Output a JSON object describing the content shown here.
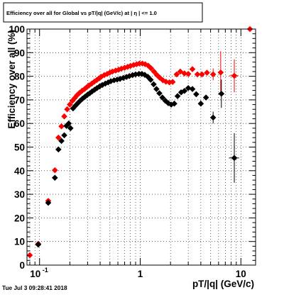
{
  "chart_data": {
    "type": "scatter",
    "title": "Efficiency over all for Global vs pT/|q| (GeV/c) at | η | <= 1.0",
    "xlabel": "pT/|q| (GeV/c)",
    "ylabel": "Efficiency over all (%)",
    "footer": "Tue Jul  3 09:28:41 2018",
    "x_scale": "log",
    "xlim": [
      0.075,
      14
    ],
    "ylim": [
      0,
      100
    ],
    "grid": true,
    "y_ticks": [
      "0",
      "10",
      "20",
      "30",
      "40",
      "50",
      "60",
      "70",
      "80",
      "90",
      "100"
    ],
    "x_ticks": [
      {
        "v": 0.1,
        "t": "10",
        "sup": "-1"
      },
      {
        "v": 1,
        "t": "1",
        "sup": ""
      },
      {
        "v": 10,
        "t": "10",
        "sup": ""
      }
    ],
    "series": [
      {
        "color": "#ff0000",
        "points": [
          [
            0.08,
            4.2,
            0,
            0
          ],
          [
            0.097,
            9.0,
            0.005,
            0
          ],
          [
            0.122,
            27.2,
            0.006,
            0
          ],
          [
            0.142,
            40.2,
            0.004,
            0
          ],
          [
            0.154,
            54.0,
            0,
            0
          ],
          [
            0.165,
            58.8,
            0,
            0
          ],
          [
            0.176,
            63.0,
            0,
            0
          ],
          [
            0.188,
            66.0,
            0,
            0
          ],
          [
            0.2,
            68.0,
            0,
            0
          ],
          [
            0.212,
            69.6,
            0,
            0
          ],
          [
            0.224,
            70.8,
            0,
            0
          ],
          [
            0.236,
            72.0,
            0,
            0
          ],
          [
            0.25,
            73.0,
            0,
            0
          ],
          [
            0.265,
            73.9,
            0,
            0
          ],
          [
            0.28,
            74.6,
            0,
            0
          ],
          [
            0.295,
            75.4,
            0,
            0
          ],
          [
            0.31,
            76.1,
            0,
            0
          ],
          [
            0.33,
            76.9,
            0,
            0
          ],
          [
            0.35,
            77.7,
            0,
            0
          ],
          [
            0.37,
            78.4,
            0,
            0
          ],
          [
            0.39,
            79.1,
            0,
            0
          ],
          [
            0.41,
            79.8,
            0,
            0
          ],
          [
            0.44,
            80.5,
            0,
            0
          ],
          [
            0.47,
            81.0,
            0,
            0
          ],
          [
            0.5,
            81.6,
            0,
            0
          ],
          [
            0.53,
            82.0,
            0,
            0
          ],
          [
            0.57,
            82.4,
            0,
            0
          ],
          [
            0.61,
            82.8,
            0,
            0
          ],
          [
            0.65,
            83.2,
            0,
            0
          ],
          [
            0.7,
            83.6,
            0,
            0
          ],
          [
            0.75,
            84.0,
            0,
            0
          ],
          [
            0.8,
            84.4,
            0,
            0
          ],
          [
            0.86,
            84.8,
            0,
            0
          ],
          [
            0.92,
            85.1,
            0,
            0
          ],
          [
            0.98,
            85.4,
            0,
            0
          ],
          [
            1.05,
            85.4,
            0,
            0
          ],
          [
            1.12,
            85.1,
            0,
            0
          ],
          [
            1.2,
            84.5,
            0,
            0
          ],
          [
            1.28,
            83.4,
            0,
            0
          ],
          [
            1.37,
            82.0,
            0,
            0
          ],
          [
            1.46,
            80.6,
            0,
            0
          ],
          [
            1.56,
            79.4,
            0,
            0
          ],
          [
            1.68,
            78.3,
            0,
            0
          ],
          [
            1.8,
            77.7,
            0,
            0
          ],
          [
            1.95,
            77.4,
            0,
            0
          ],
          [
            2.1,
            77.6,
            0,
            0
          ],
          [
            2.3,
            80.8,
            0,
            0
          ],
          [
            2.5,
            82.0,
            0,
            0
          ],
          [
            2.75,
            81.2,
            0,
            0
          ],
          [
            3.0,
            81.0,
            0,
            0
          ],
          [
            3.3,
            83.0,
            0,
            0
          ],
          [
            3.7,
            80.8,
            0,
            0
          ],
          [
            4.1,
            80.8,
            0,
            0
          ],
          [
            4.6,
            81.5,
            0,
            0
          ],
          [
            5.3,
            80.8,
            0.2,
            2.5
          ],
          [
            6.3,
            81.6,
            0.4,
            9.0
          ],
          [
            8.6,
            80.2,
            0.9,
            7.0
          ],
          [
            12.3,
            100.0,
            0,
            0
          ]
        ]
      },
      {
        "color": "#000000",
        "points": [
          [
            0.097,
            8.7,
            0.005,
            0
          ],
          [
            0.122,
            26.4,
            0.007,
            0
          ],
          [
            0.142,
            37.0,
            0,
            0
          ],
          [
            0.154,
            49.0,
            0,
            0
          ],
          [
            0.165,
            52.6,
            0,
            0
          ],
          [
            0.176,
            55.0,
            0,
            0
          ],
          [
            0.185,
            59.0,
            0,
            0
          ],
          [
            0.195,
            60.0,
            0,
            0
          ],
          [
            0.203,
            58.0,
            0,
            0
          ],
          [
            0.215,
            66.4,
            0,
            0
          ],
          [
            0.228,
            67.6,
            0,
            0
          ],
          [
            0.24,
            68.6,
            0,
            0
          ],
          [
            0.253,
            69.6,
            0,
            0
          ],
          [
            0.267,
            70.5,
            0,
            0
          ],
          [
            0.282,
            71.3,
            0,
            0
          ],
          [
            0.298,
            72.1,
            0,
            0
          ],
          [
            0.315,
            72.8,
            0,
            0
          ],
          [
            0.333,
            73.6,
            0,
            0
          ],
          [
            0.352,
            74.3,
            0,
            0
          ],
          [
            0.372,
            75.0,
            0,
            0
          ],
          [
            0.395,
            75.7,
            0,
            0
          ],
          [
            0.42,
            76.3,
            0,
            0
          ],
          [
            0.45,
            76.9,
            0,
            0
          ],
          [
            0.48,
            77.4,
            0,
            0
          ],
          [
            0.51,
            77.9,
            0,
            0
          ],
          [
            0.55,
            78.3,
            0,
            0
          ],
          [
            0.59,
            78.6,
            0,
            0
          ],
          [
            0.63,
            78.9,
            0,
            0
          ],
          [
            0.68,
            79.3,
            0,
            0
          ],
          [
            0.73,
            79.7,
            0,
            0
          ],
          [
            0.78,
            80.1,
            0,
            0
          ],
          [
            0.84,
            80.5,
            0,
            0
          ],
          [
            0.9,
            80.8,
            0,
            0
          ],
          [
            0.97,
            81.0,
            0,
            0
          ],
          [
            1.04,
            81.0,
            0,
            0
          ],
          [
            1.11,
            80.6,
            0,
            0
          ],
          [
            1.19,
            79.8,
            0,
            0
          ],
          [
            1.27,
            78.5,
            0,
            0
          ],
          [
            1.36,
            76.6,
            0,
            0
          ],
          [
            1.45,
            74.6,
            0,
            0
          ],
          [
            1.55,
            72.8,
            0,
            0
          ],
          [
            1.66,
            71.0,
            0,
            0
          ],
          [
            1.78,
            69.6,
            0,
            0
          ],
          [
            1.9,
            68.6,
            0,
            0
          ],
          [
            2.03,
            68.0,
            0,
            0
          ],
          [
            2.18,
            68.4,
            0,
            0
          ],
          [
            2.35,
            71.6,
            0,
            0
          ],
          [
            2.55,
            73.2,
            0,
            0
          ],
          [
            2.75,
            73.8,
            0,
            0
          ],
          [
            3.0,
            75.0,
            0,
            0
          ],
          [
            3.3,
            74.6,
            0,
            0
          ],
          [
            3.6,
            72.4,
            0,
            0
          ],
          [
            4.0,
            68.4,
            0,
            0
          ],
          [
            4.5,
            71.0,
            0.25,
            0
          ],
          [
            5.3,
            62.5,
            0.3,
            2.5
          ],
          [
            6.4,
            72.6,
            0.45,
            6.0
          ],
          [
            8.6,
            45.4,
            1.0,
            10.5
          ]
        ]
      }
    ]
  }
}
